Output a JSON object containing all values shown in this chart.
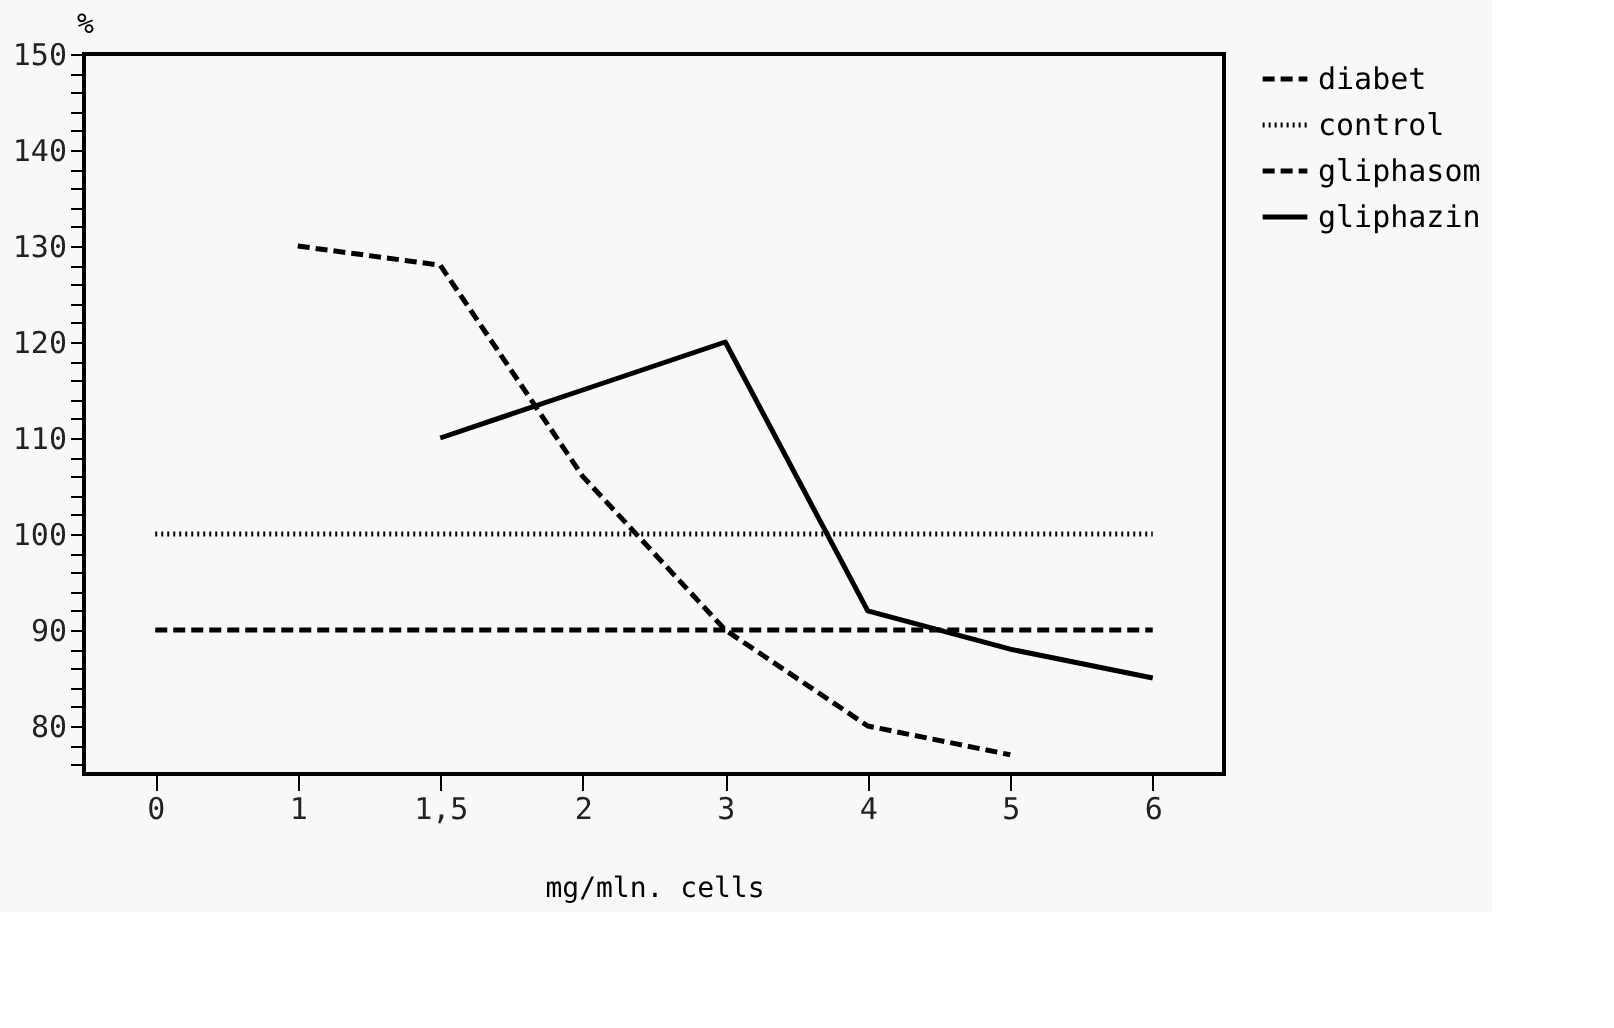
{
  "chart_data": {
    "type": "line",
    "xlabel": "mg/mln. cells",
    "ylabel": "%",
    "categories": [
      "0",
      "1",
      "1,5",
      "2",
      "3",
      "4",
      "5",
      "6"
    ],
    "series": [
      {
        "name": "diabet",
        "color": "#000000",
        "line_style": "dashed",
        "values": [
          90,
          90,
          90,
          90,
          90,
          90,
          90,
          90
        ]
      },
      {
        "name": "control",
        "color": "#000000",
        "line_style": "dotted",
        "values": [
          100,
          100,
          100,
          100,
          100,
          100,
          100,
          100
        ]
      },
      {
        "name": "gliphasom",
        "color": "#000000",
        "line_style": "dashed",
        "values": [
          null,
          130,
          128,
          106,
          90,
          80,
          77,
          null
        ]
      },
      {
        "name": "gliphazin",
        "color": "#000000",
        "line_style": "solid",
        "values": [
          null,
          null,
          110,
          115,
          120,
          92,
          88,
          85
        ]
      }
    ],
    "ylim": [
      75,
      150
    ],
    "yticks": [
      {
        "value": 76,
        "label": null
      },
      {
        "value": 78,
        "label": null
      },
      80,
      {
        "value": 82,
        "label": null
      },
      {
        "value": 84,
        "label": null
      },
      {
        "value": 86,
        "label": null
      },
      {
        "value": 88,
        "label": null
      },
      90,
      {
        "value": 92,
        "label": null
      },
      {
        "value": 94,
        "label": null
      },
      {
        "value": 96,
        "label": null
      },
      {
        "value": 98,
        "label": null
      },
      100,
      {
        "value": 102,
        "label": null
      },
      {
        "value": 104,
        "label": null
      },
      {
        "value": 106,
        "label": null
      },
      {
        "value": 108,
        "label": null
      },
      110,
      {
        "value": 112,
        "label": null
      },
      {
        "value": 114,
        "label": null
      },
      {
        "value": 116,
        "label": null
      },
      {
        "value": 118,
        "label": null
      },
      120,
      {
        "value": 122,
        "label": null
      },
      {
        "value": 124,
        "label": null
      },
      {
        "value": 126,
        "label": null
      },
      {
        "value": 128,
        "label": null
      },
      130,
      {
        "value": 132,
        "label": null
      },
      {
        "value": 134,
        "label": null
      },
      {
        "value": 136,
        "label": null
      },
      {
        "value": 138,
        "label": null
      },
      140,
      {
        "value": 142,
        "label": null
      },
      {
        "value": 144,
        "label": null
      },
      {
        "value": 146,
        "label": null
      },
      {
        "value": 148,
        "label": null
      },
      150
    ],
    "grid": false,
    "legend": "right",
    "marker": "none"
  }
}
